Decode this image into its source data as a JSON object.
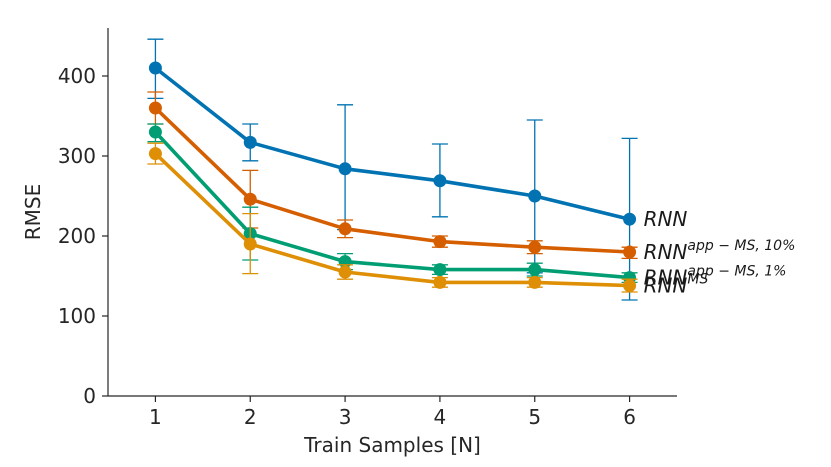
{
  "chart_data": {
    "type": "line",
    "xlabel": "Train Samples [N]",
    "ylabel": "RMSE",
    "x": [
      1,
      2,
      3,
      4,
      5,
      6
    ],
    "xlim": [
      0.5,
      6.5
    ],
    "ylim": [
      0,
      460
    ],
    "xticks": [
      "1",
      "2",
      "3",
      "4",
      "5",
      "6"
    ],
    "yticks": [
      "0",
      "100",
      "200",
      "300",
      "400"
    ],
    "grid": false,
    "legend": "inline labels at right end of each line",
    "series": [
      {
        "name": "RNN",
        "name_base": "RNN",
        "name_sup": "",
        "color": "#0173b2",
        "values": [
          410,
          317,
          284,
          269,
          250,
          221
        ],
        "err_low": [
          372,
          294,
          208,
          224,
          154,
          120
        ],
        "err_high": [
          446,
          340,
          364,
          315,
          345,
          322
        ]
      },
      {
        "name": "RNN^{app-MS,10%}",
        "name_base": "RNN",
        "name_sup": "app − MS, 10%",
        "color": "#d55e00",
        "values": [
          360,
          246,
          209,
          193,
          186,
          180
        ],
        "err_low": [
          340,
          210,
          198,
          186,
          178,
          172
        ],
        "err_high": [
          380,
          282,
          220,
          200,
          194,
          186
        ]
      },
      {
        "name": "RNN^{app-MS,1%}",
        "name_base": "RNN",
        "name_sup": "app − MS, 1%",
        "color": "#029e73",
        "values": [
          330,
          203,
          168,
          158,
          158,
          148
        ],
        "err_low": [
          318,
          170,
          158,
          152,
          150,
          142
        ],
        "err_high": [
          340,
          236,
          178,
          164,
          166,
          154
        ]
      },
      {
        "name": "RNN^{MS}",
        "name_base": "RNN",
        "name_sup": "MS",
        "color": "#de8f05",
        "values": [
          303,
          190,
          155,
          142,
          142,
          138
        ],
        "err_low": [
          290,
          153,
          146,
          136,
          136,
          130
        ],
        "err_high": [
          316,
          228,
          164,
          148,
          148,
          146
        ]
      }
    ]
  }
}
